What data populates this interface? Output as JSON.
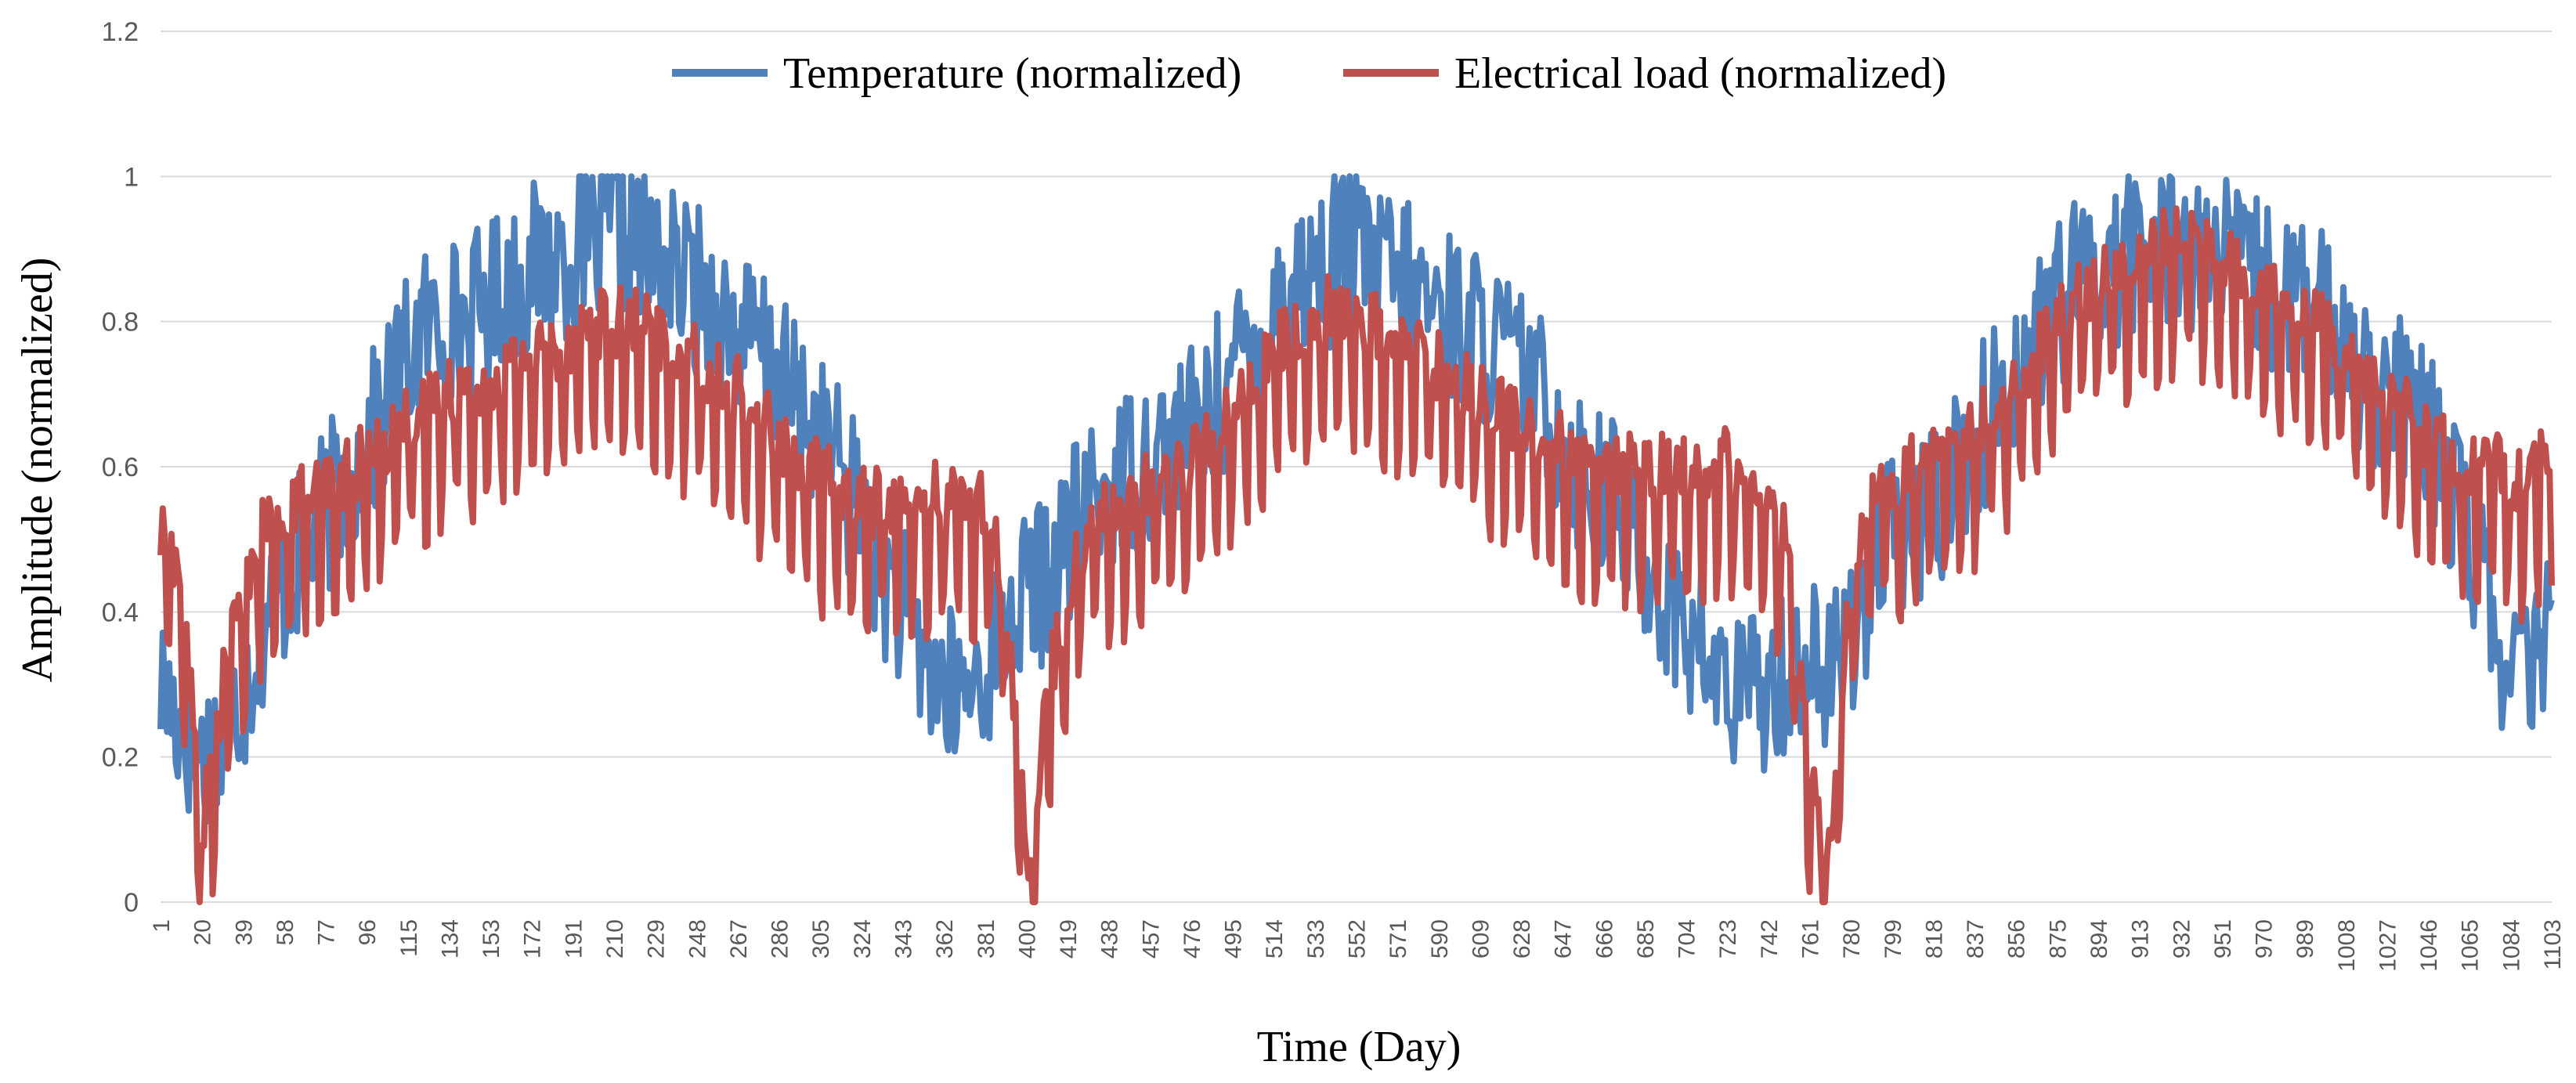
{
  "chart_data": {
    "type": "line",
    "title": "",
    "xlabel": "Time (Day)",
    "ylabel": "Amplitude (normalized)",
    "ylim": [
      0,
      1.2
    ],
    "xlim": [
      1,
      1103
    ],
    "y_ticks": [
      "0",
      "0.2",
      "0.4",
      "0.6",
      "0.8",
      "1",
      "1.2"
    ],
    "x_ticks": [
      1,
      20,
      39,
      58,
      77,
      96,
      115,
      134,
      153,
      172,
      191,
      210,
      229,
      248,
      267,
      286,
      305,
      324,
      343,
      362,
      381,
      400,
      419,
      438,
      457,
      476,
      495,
      514,
      533,
      552,
      571,
      590,
      609,
      628,
      647,
      666,
      685,
      704,
      723,
      742,
      761,
      780,
      799,
      818,
      837,
      856,
      875,
      894,
      913,
      932,
      951,
      970,
      989,
      1008,
      1027,
      1046,
      1065,
      1084,
      1103
    ],
    "grid": true,
    "legend_position": "top",
    "series": [
      {
        "name": "Temperature (normalized)",
        "color": "#4F81BD",
        "x": [
          1,
          10,
          20,
          30,
          40,
          50,
          60,
          70,
          80,
          90,
          100,
          110,
          120,
          130,
          140,
          150,
          160,
          170,
          180,
          190,
          200,
          210,
          220,
          230,
          240,
          250,
          260,
          270,
          280,
          290,
          300,
          310,
          320,
          330,
          340,
          350,
          360,
          370,
          380,
          390,
          400,
          410,
          420,
          430,
          440,
          450,
          460,
          470,
          480,
          490,
          500,
          510,
          520,
          530,
          540,
          550,
          560,
          570,
          580,
          590,
          600,
          610,
          620,
          630,
          640,
          650,
          660,
          670,
          680,
          690,
          700,
          710,
          720,
          730,
          740,
          750,
          760,
          770,
          780,
          790,
          800,
          810,
          820,
          830,
          840,
          850,
          860,
          870,
          880,
          890,
          900,
          910,
          920,
          930,
          940,
          950,
          960,
          970,
          980,
          990,
          1000,
          1010,
          1020,
          1030,
          1040,
          1050,
          1060,
          1070,
          1080,
          1090,
          1103
        ],
        "values": [
          0.3,
          0.25,
          0.2,
          0.22,
          0.3,
          0.4,
          0.45,
          0.5,
          0.55,
          0.6,
          0.65,
          0.72,
          0.78,
          0.8,
          0.8,
          0.82,
          0.85,
          0.87,
          0.88,
          0.9,
          0.9,
          0.92,
          0.9,
          0.88,
          0.86,
          0.84,
          0.8,
          0.78,
          0.75,
          0.7,
          0.66,
          0.62,
          0.56,
          0.48,
          0.42,
          0.35,
          0.3,
          0.28,
          0.32,
          0.38,
          0.42,
          0.45,
          0.5,
          0.55,
          0.58,
          0.6,
          0.62,
          0.64,
          0.66,
          0.7,
          0.75,
          0.8,
          0.84,
          0.87,
          0.88,
          0.9,
          0.88,
          0.86,
          0.84,
          0.82,
          0.8,
          0.78,
          0.76,
          0.72,
          0.68,
          0.62,
          0.58,
          0.55,
          0.5,
          0.45,
          0.4,
          0.35,
          0.3,
          0.28,
          0.3,
          0.32,
          0.35,
          0.3,
          0.38,
          0.45,
          0.5,
          0.52,
          0.55,
          0.6,
          0.65,
          0.7,
          0.75,
          0.8,
          0.84,
          0.86,
          0.88,
          0.9,
          0.9,
          0.92,
          0.9,
          0.88,
          0.87,
          0.85,
          0.84,
          0.82,
          0.8,
          0.76,
          0.72,
          0.7,
          0.66,
          0.62,
          0.55,
          0.45,
          0.35,
          0.3,
          0.36
        ],
        "noise": 0.12
      },
      {
        "name": "Electrical load (normalized)",
        "color": "#C0504D",
        "x": [
          1,
          10,
          20,
          30,
          40,
          50,
          60,
          70,
          80,
          90,
          100,
          110,
          120,
          130,
          140,
          150,
          160,
          170,
          180,
          190,
          200,
          210,
          220,
          230,
          240,
          250,
          260,
          270,
          280,
          290,
          300,
          310,
          320,
          330,
          340,
          350,
          360,
          370,
          380,
          390,
          400,
          410,
          420,
          430,
          440,
          450,
          460,
          470,
          480,
          490,
          500,
          510,
          520,
          530,
          540,
          550,
          560,
          570,
          580,
          590,
          600,
          610,
          620,
          630,
          640,
          650,
          660,
          670,
          680,
          690,
          700,
          710,
          720,
          730,
          740,
          750,
          760,
          770,
          780,
          790,
          800,
          810,
          820,
          830,
          840,
          850,
          860,
          870,
          880,
          890,
          900,
          910,
          920,
          930,
          940,
          950,
          960,
          970,
          980,
          990,
          1000,
          1010,
          1020,
          1030,
          1040,
          1050,
          1060,
          1070,
          1080,
          1090,
          1103
        ],
        "values": [
          0.5,
          0.45,
          0.1,
          0.3,
          0.45,
          0.52,
          0.55,
          0.56,
          0.58,
          0.6,
          0.62,
          0.65,
          0.68,
          0.7,
          0.72,
          0.72,
          0.74,
          0.76,
          0.76,
          0.78,
          0.8,
          0.8,
          0.8,
          0.78,
          0.76,
          0.74,
          0.72,
          0.7,
          0.66,
          0.62,
          0.6,
          0.58,
          0.56,
          0.55,
          0.55,
          0.55,
          0.56,
          0.56,
          0.55,
          0.45,
          0.05,
          0.3,
          0.45,
          0.52,
          0.55,
          0.56,
          0.58,
          0.6,
          0.62,
          0.66,
          0.7,
          0.74,
          0.78,
          0.8,
          0.82,
          0.82,
          0.8,
          0.78,
          0.76,
          0.74,
          0.72,
          0.7,
          0.68,
          0.66,
          0.64,
          0.62,
          0.6,
          0.6,
          0.6,
          0.6,
          0.6,
          0.6,
          0.62,
          0.6,
          0.58,
          0.5,
          0.2,
          0.05,
          0.45,
          0.55,
          0.58,
          0.6,
          0.62,
          0.64,
          0.66,
          0.7,
          0.74,
          0.78,
          0.82,
          0.85,
          0.86,
          0.88,
          0.9,
          0.92,
          0.9,
          0.88,
          0.88,
          0.86,
          0.84,
          0.82,
          0.8,
          0.76,
          0.72,
          0.7,
          0.66,
          0.64,
          0.62,
          0.6,
          0.6,
          0.58,
          0.62
        ],
        "noise": 0.1
      }
    ]
  }
}
